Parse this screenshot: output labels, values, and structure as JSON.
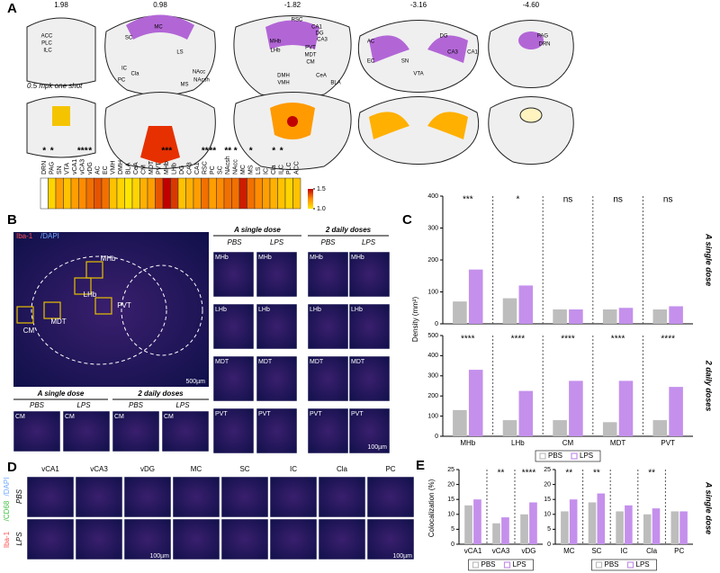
{
  "panel_letters": [
    "A",
    "B",
    "C",
    "D",
    "E"
  ],
  "panel_a": {
    "coordinates": [
      "1.98",
      "0.98",
      "-1.82",
      "-3.16",
      "-4.60"
    ],
    "atlas_labels": [
      "ACC",
      "PLC",
      "ILC",
      "MC",
      "SC",
      "LS",
      "IC",
      "Cla",
      "PC",
      "NAcc",
      "NAcsh",
      "MS",
      "RSC",
      "CA1",
      "DG",
      "CA3",
      "MHb",
      "LHb",
      "PVT",
      "MDT",
      "CM",
      "DMH",
      "VMH",
      "CeA",
      "BLA",
      "AC",
      "EC",
      "DG",
      "CA3",
      "CA1",
      "SN",
      "VTA",
      "PAG",
      "DRN"
    ],
    "annotation": "0.5 mpk one shot",
    "heatmap": {
      "type": "heatmap",
      "categories": [
        "DRN",
        "PAG",
        "SN",
        "VTA",
        "vCA1",
        "vCA3",
        "vDG",
        "AC",
        "EC",
        "VMH",
        "DMH",
        "BLA",
        "CeA",
        "CM",
        "MDT",
        "PVT",
        "MHb",
        "LHb",
        "DG",
        "CA3",
        "CA1",
        "RSC",
        "PC",
        "SC",
        "NAcsh",
        "NAcc",
        "MC",
        "MS",
        "LS",
        "IC",
        "Cla",
        "ILC",
        "PLC",
        "ACC"
      ],
      "values": [
        null,
        1.05,
        1.2,
        1.1,
        1.2,
        1.25,
        1.3,
        1.35,
        1.3,
        1.1,
        1.05,
        1.0,
        1.05,
        1.15,
        1.2,
        1.35,
        1.5,
        1.4,
        1.1,
        1.15,
        1.2,
        1.3,
        1.2,
        1.25,
        1.3,
        1.3,
        1.45,
        1.3,
        1.25,
        1.2,
        1.15,
        1.1,
        1.05,
        1.1
      ],
      "significance": [
        "*",
        "*",
        null,
        null,
        null,
        "***",
        "*",
        null,
        null,
        null,
        null,
        null,
        null,
        null,
        null,
        null,
        "***",
        null,
        null,
        null,
        null,
        "**",
        "**",
        null,
        "**",
        "*",
        null,
        "*",
        null,
        null,
        "*",
        "*",
        null,
        null
      ],
      "clim": [
        1.0,
        1.5
      ],
      "cticks": [
        {
          "value": 1,
          "label": "1.0"
        },
        1.5
      ]
    }
  },
  "panel_b": {
    "stain": [
      "Iba-1",
      "/DAPI"
    ],
    "overview_regions": [
      "MHb",
      "LHb",
      "PVT",
      "MDT",
      "CM"
    ],
    "scale_bar": "500µm",
    "groups": [
      "A single dose",
      "2 daily doses"
    ],
    "conditions": [
      "PBS",
      "LPS"
    ],
    "rows": [
      "MHb",
      "LHb",
      "MDT",
      "PVT"
    ],
    "cm_row": "CM",
    "scale_bar_small": "100µm"
  },
  "panel_c": {
    "y_label": "Density (mm²)",
    "categories": [
      "MHb",
      "LHb",
      "CM",
      "MDT",
      "PVT"
    ],
    "charts": [
      {
        "type": "bar",
        "row_label": "A single dose",
        "ylim": [
          0,
          400
        ],
        "yticks": [
          0,
          100,
          200,
          300,
          400
        ],
        "series": [
          {
            "name": "PBS",
            "color": "#bdbdbd",
            "values": [
              70,
              80,
              45,
              45,
              45
            ]
          },
          {
            "name": "LPS",
            "color": "#c490ec",
            "values": [
              170,
              120,
              45,
              50,
              55
            ]
          }
        ],
        "significance": [
          "***",
          "*",
          "ns",
          "ns",
          "ns"
        ]
      },
      {
        "type": "bar",
        "row_label": "2 daily doses",
        "ylim": [
          0,
          500
        ],
        "yticks": [
          0,
          100,
          200,
          300,
          400,
          500
        ],
        "series": [
          {
            "name": "PBS",
            "color": "#bdbdbd",
            "values": [
              130,
              80,
              80,
              70,
              80
            ]
          },
          {
            "name": "LPS",
            "color": "#c490ec",
            "values": [
              330,
              225,
              275,
              275,
              245
            ]
          }
        ],
        "significance": [
          "****",
          "****",
          "****",
          "****",
          "****"
        ]
      }
    ]
  },
  "panel_d": {
    "stain": [
      "Iba-1",
      "/CD68",
      "/DAPI"
    ],
    "columns": [
      "vCA1",
      "vCA3",
      "vDG",
      "MC",
      "SC",
      "IC",
      "Cla",
      "PC"
    ],
    "rows": [
      "PBS",
      "LPS"
    ],
    "scale_bar": "100µm"
  },
  "panel_e": {
    "y_label": "Colocalization (%)",
    "row_label": "A single dose",
    "charts": [
      {
        "type": "bar",
        "categories": [
          "vCA1",
          "vCA3",
          "vDG"
        ],
        "ylim": [
          0,
          25
        ],
        "yticks": [
          0,
          5,
          10,
          15,
          20,
          25
        ],
        "series": [
          {
            "name": "PBS",
            "color": "#bdbdbd",
            "values": [
              13,
              7,
              10
            ]
          },
          {
            "name": "LPS",
            "color": "#c490ec",
            "values": [
              15,
              9,
              14
            ]
          }
        ],
        "significance": [
          null,
          "**",
          "****"
        ]
      },
      {
        "type": "bar",
        "categories": [
          "MC",
          "SC",
          "IC",
          "Cla",
          "PC"
        ],
        "ylim": [
          0,
          25
        ],
        "yticks": [
          0,
          5,
          10,
          15,
          20,
          25
        ],
        "series": [
          {
            "name": "PBS",
            "color": "#bdbdbd",
            "values": [
              11,
              14,
              11,
              10,
              11
            ]
          },
          {
            "name": "LPS",
            "color": "#c490ec",
            "values": [
              15,
              17,
              13,
              12,
              11
            ]
          }
        ],
        "significance": [
          "**",
          "**",
          null,
          "**",
          null
        ]
      }
    ]
  }
}
